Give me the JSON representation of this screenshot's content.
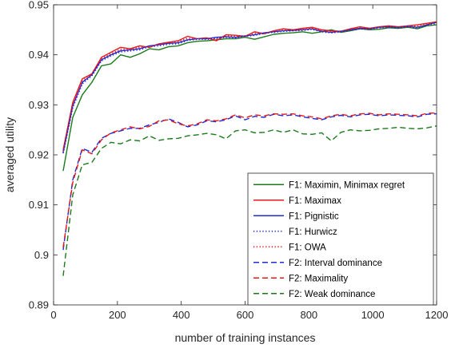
{
  "chart_data": {
    "type": "line",
    "title": "",
    "xlabel": "number of training instances",
    "ylabel": "averaged utility",
    "xlim": [
      0,
      1200
    ],
    "ylim": [
      0.89,
      0.95
    ],
    "xticks": [
      0,
      200,
      400,
      600,
      800,
      1000,
      1200
    ],
    "xtick_labels": [
      "0",
      "200",
      "400",
      "600",
      "800",
      "1000",
      "1200"
    ],
    "yticks": [
      0.89,
      0.9,
      0.91,
      0.92,
      0.93,
      0.94,
      0.95
    ],
    "ytick_labels": [
      "0.89",
      "0.9",
      "0.91",
      "0.92",
      "0.93",
      "0.94",
      "0.95"
    ],
    "grid": false,
    "legend_position": "bottom-right",
    "x": [
      30,
      60,
      90,
      120,
      150,
      180,
      210,
      240,
      270,
      300,
      330,
      360,
      390,
      420,
      450,
      480,
      510,
      540,
      570,
      600,
      630,
      660,
      690,
      720,
      750,
      780,
      810,
      840,
      870,
      900,
      930,
      960,
      990,
      1020,
      1050,
      1080,
      1110,
      1140,
      1170,
      1200
    ],
    "series": [
      {
        "name": "F1: Maximin, Minimax regret",
        "color": "#1a7a1a",
        "dash": "solid",
        "values": [
          0.9168,
          0.9275,
          0.932,
          0.9345,
          0.9378,
          0.9382,
          0.94,
          0.9395,
          0.9402,
          0.9412,
          0.941,
          0.9416,
          0.9418,
          0.9424,
          0.9427,
          0.9428,
          0.943,
          0.9432,
          0.9432,
          0.9435,
          0.9431,
          0.9436,
          0.9441,
          0.9443,
          0.9444,
          0.9446,
          0.9443,
          0.9446,
          0.945,
          0.9445,
          0.9448,
          0.9452,
          0.945,
          0.9451,
          0.9454,
          0.9453,
          0.9455,
          0.9452,
          0.9458,
          0.946
        ]
      },
      {
        "name": "F1: Maximax",
        "color": "#e41a1c",
        "dash": "solid",
        "values": [
          0.921,
          0.9305,
          0.9352,
          0.9362,
          0.9395,
          0.9405,
          0.9415,
          0.9412,
          0.9418,
          0.9415,
          0.9422,
          0.9425,
          0.9428,
          0.9437,
          0.9432,
          0.9434,
          0.9428,
          0.944,
          0.9439,
          0.9437,
          0.9446,
          0.9442,
          0.9448,
          0.9452,
          0.945,
          0.9453,
          0.9455,
          0.945,
          0.9448,
          0.9447,
          0.9452,
          0.9456,
          0.9453,
          0.9456,
          0.9458,
          0.9456,
          0.9458,
          0.946,
          0.9463,
          0.9466
        ]
      },
      {
        "name": "F1: Pignistic",
        "color": "#1f2ad6",
        "dash": "solid",
        "values": [
          0.9205,
          0.9298,
          0.9345,
          0.936,
          0.939,
          0.94,
          0.9408,
          0.941,
          0.9412,
          0.9418,
          0.942,
          0.9423,
          0.9424,
          0.943,
          0.9432,
          0.9432,
          0.9435,
          0.9436,
          0.9435,
          0.9438,
          0.944,
          0.9444,
          0.9446,
          0.9448,
          0.9449,
          0.945,
          0.9452,
          0.9447,
          0.9445,
          0.9447,
          0.945,
          0.9453,
          0.9452,
          0.9455,
          0.9456,
          0.9455,
          0.9457,
          0.9455,
          0.946,
          0.9465
        ]
      },
      {
        "name": "F1: Hurwicz",
        "color": "#1f2ad6",
        "dash": "dotted",
        "values": [
          0.9203,
          0.9295,
          0.9342,
          0.9358,
          0.9388,
          0.9398,
          0.9406,
          0.9408,
          0.941,
          0.9416,
          0.9418,
          0.9421,
          0.9422,
          0.9429,
          0.9431,
          0.9431,
          0.9433,
          0.9435,
          0.9434,
          0.9437,
          0.9439,
          0.9443,
          0.9445,
          0.9447,
          0.9448,
          0.9449,
          0.9451,
          0.9446,
          0.9444,
          0.9446,
          0.9449,
          0.9452,
          0.9451,
          0.9454,
          0.9455,
          0.9454,
          0.9456,
          0.9454,
          0.9459,
          0.9463
        ]
      },
      {
        "name": "F1: OWA",
        "color": "#e41a1c",
        "dash": "dotted",
        "values": [
          0.9207,
          0.93,
          0.9348,
          0.9361,
          0.9392,
          0.9402,
          0.9411,
          0.9411,
          0.9415,
          0.9416,
          0.9421,
          0.9424,
          0.9426,
          0.9433,
          0.9432,
          0.9433,
          0.9431,
          0.9438,
          0.9437,
          0.9437,
          0.9443,
          0.9443,
          0.9447,
          0.945,
          0.9449,
          0.9451,
          0.9453,
          0.9448,
          0.9446,
          0.9447,
          0.9451,
          0.9454,
          0.9452,
          0.9455,
          0.9457,
          0.9455,
          0.9457,
          0.9457,
          0.9461,
          0.9465
        ]
      },
      {
        "name": "F2: Interval dominance",
        "color": "#1f2ad6",
        "dash": "dashed",
        "values": [
          0.901,
          0.915,
          0.9213,
          0.9205,
          0.9233,
          0.9243,
          0.9248,
          0.9253,
          0.9253,
          0.926,
          0.9265,
          0.9272,
          0.9265,
          0.9256,
          0.926,
          0.9268,
          0.9266,
          0.927,
          0.9278,
          0.927,
          0.9277,
          0.9275,
          0.9281,
          0.9278,
          0.928,
          0.9276,
          0.9273,
          0.927,
          0.9276,
          0.9279,
          0.9276,
          0.928,
          0.9281,
          0.9278,
          0.928,
          0.9279,
          0.9278,
          0.9276,
          0.9281,
          0.9282
        ]
      },
      {
        "name": "F2: Maximality",
        "color": "#e41a1c",
        "dash": "dashed",
        "values": [
          0.9015,
          0.9145,
          0.921,
          0.9202,
          0.923,
          0.9244,
          0.925,
          0.9256,
          0.9252,
          0.9257,
          0.9268,
          0.927,
          0.9262,
          0.9258,
          0.9262,
          0.927,
          0.9268,
          0.9272,
          0.928,
          0.9274,
          0.928,
          0.9278,
          0.9282,
          0.9281,
          0.9282,
          0.9278,
          0.9276,
          0.9272,
          0.9278,
          0.9281,
          0.9278,
          0.9282,
          0.9283,
          0.928,
          0.9282,
          0.9281,
          0.928,
          0.9278,
          0.9283,
          0.9284
        ]
      },
      {
        "name": "F2: Weak dominance",
        "color": "#1a7a1a",
        "dash": "dashed",
        "values": [
          0.8958,
          0.912,
          0.918,
          0.9185,
          0.9213,
          0.9225,
          0.9222,
          0.923,
          0.9228,
          0.9238,
          0.9229,
          0.9232,
          0.9233,
          0.9238,
          0.924,
          0.9243,
          0.924,
          0.9232,
          0.9248,
          0.925,
          0.9244,
          0.9245,
          0.925,
          0.9245,
          0.925,
          0.9242,
          0.9241,
          0.9244,
          0.9228,
          0.9245,
          0.925,
          0.9248,
          0.9249,
          0.9252,
          0.9253,
          0.9255,
          0.9253,
          0.9252,
          0.9254,
          0.9258
        ]
      }
    ]
  }
}
